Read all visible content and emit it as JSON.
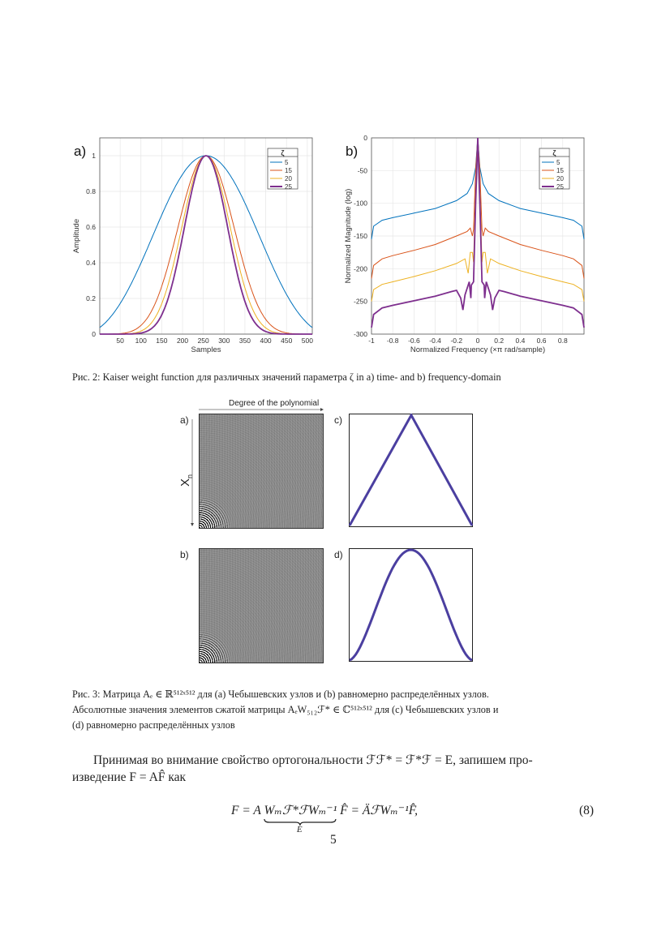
{
  "figure2": {
    "caption": "Рис. 2: Kaiser weight function для различных значений параметра ζ in a) time- and b) frequency-domain",
    "chart_data": [
      {
        "type": "line",
        "panel_label": "a)",
        "xlabel": "Samples",
        "ylabel": "Amplitude",
        "xlim": [
          1,
          512
        ],
        "ylim": [
          0,
          1.1
        ],
        "xticks": [
          50,
          100,
          150,
          200,
          250,
          300,
          350,
          400,
          450,
          500
        ],
        "yticks": [
          0,
          0.2,
          0.4,
          0.6,
          0.8,
          1
        ],
        "grid": true,
        "legend": {
          "title": "ζ",
          "position": "top-right"
        },
        "window_length": 512,
        "series": [
          {
            "name": "5",
            "beta": 5,
            "color": "#0072BD"
          },
          {
            "name": "15",
            "beta": 15,
            "color": "#D95319"
          },
          {
            "name": "20",
            "beta": 20,
            "color": "#EDB120"
          },
          {
            "name": "25",
            "beta": 25,
            "color": "#7E2F8E"
          }
        ]
      },
      {
        "type": "line",
        "panel_label": "b)",
        "xlabel": "Normalized Frequency  (×π rad/sample)",
        "ylabel": "Normalized Magnitude (log)",
        "xlim": [
          -1,
          1
        ],
        "ylim": [
          -300,
          0
        ],
        "xticks": [
          -1,
          -0.8,
          -0.6,
          -0.4,
          -0.2,
          0,
          0.2,
          0.4,
          0.6,
          0.8
        ],
        "yticks": [
          0,
          -50,
          -100,
          -150,
          -200,
          -250,
          -300
        ],
        "grid": true,
        "legend": {
          "title": "ζ",
          "position": "top-right"
        },
        "series": [
          {
            "name": "5",
            "color": "#0072BD",
            "x": [
              -1,
              -0.98,
              -0.9,
              -0.8,
              -0.6,
              -0.4,
              -0.2,
              -0.1,
              -0.05,
              -0.02,
              0,
              0.02,
              0.05,
              0.1,
              0.2,
              0.4,
              0.6,
              0.8,
              0.9,
              0.98,
              1
            ],
            "y": [
              -155,
              -135,
              -126,
              -122,
              -115,
              -108,
              -96,
              -85,
              -70,
              -45,
              0,
              -45,
              -70,
              -85,
              -96,
              -108,
              -115,
              -122,
              -126,
              -135,
              -155
            ]
          },
          {
            "name": "15",
            "color": "#D95319",
            "x": [
              -1,
              -0.98,
              -0.9,
              -0.8,
              -0.6,
              -0.4,
              -0.2,
              -0.1,
              -0.07,
              -0.05,
              -0.04,
              -0.02,
              0,
              0.02,
              0.04,
              0.05,
              0.07,
              0.1,
              0.2,
              0.4,
              0.6,
              0.8,
              0.9,
              0.98,
              1
            ],
            "y": [
              -215,
              -195,
              -185,
              -180,
              -172,
              -163,
              -150,
              -143,
              -138,
              -150,
              -140,
              -50,
              0,
              -50,
              -140,
              -150,
              -138,
              -143,
              -150,
              -163,
              -172,
              -180,
              -185,
              -195,
              -215
            ]
          },
          {
            "name": "20",
            "color": "#EDB120",
            "x": [
              -1,
              -0.98,
              -0.9,
              -0.8,
              -0.6,
              -0.4,
              -0.2,
              -0.12,
              -0.1,
              -0.09,
              -0.07,
              -0.05,
              -0.04,
              -0.02,
              0,
              0.02,
              0.04,
              0.05,
              0.07,
              0.09,
              0.1,
              0.12,
              0.2,
              0.4,
              0.6,
              0.8,
              0.9,
              0.98,
              1
            ],
            "y": [
              -250,
              -232,
              -224,
              -220,
              -212,
              -203,
              -192,
              -185,
              -200,
              -207,
              -175,
              -175,
              -190,
              -80,
              0,
              -80,
              -190,
              -175,
              -175,
              -207,
              -200,
              -185,
              -192,
              -203,
              -212,
              -220,
              -224,
              -232,
              -250
            ]
          },
          {
            "name": "25",
            "color": "#7E2F8E",
            "x": [
              -1,
              -0.98,
              -0.9,
              -0.8,
              -0.6,
              -0.4,
              -0.25,
              -0.2,
              -0.16,
              -0.14,
              -0.12,
              -0.08,
              -0.065,
              -0.06,
              -0.04,
              -0.02,
              0,
              0.02,
              0.04,
              0.06,
              0.065,
              0.08,
              0.12,
              0.14,
              0.16,
              0.2,
              0.25,
              0.4,
              0.6,
              0.8,
              0.9,
              0.98,
              1
            ],
            "y": [
              -290,
              -270,
              -260,
              -256,
              -249,
              -242,
              -235,
              -233,
              -245,
              -263,
              -240,
              -220,
              -245,
              -225,
              -220,
              -100,
              0,
              -100,
              -220,
              -225,
              -245,
              -220,
              -240,
              -263,
              -245,
              -233,
              -235,
              -242,
              -249,
              -256,
              -260,
              -270,
              -290
            ]
          }
        ]
      }
    ]
  },
  "figure3": {
    "top_axis_label": "Degree of the polynomial",
    "left_axis_label": "X",
    "left_axis_sub": "n",
    "panels": {
      "a": "a)",
      "b": "b)",
      "c": "c)",
      "d": "d)"
    },
    "curve_color": "#4B3FA0",
    "caption_lines": [
      "Рис. 3: Матрица Aₑ ∈ ℝ⁵¹²ˣ⁵¹² для (a) Чебышевских узлов и (b) равномерно распределённых узлов.",
      "Абсолютные значения элементов сжатой матрицы AₑW₅₁₂ℱ* ∈ ℂ⁵¹²ˣ⁵¹² для (c) Чебышевских узлов и",
      "(d) равномерно распределённых узлов"
    ]
  },
  "paragraph": {
    "line1": "Принимая во внимание свойство ортогональности ℱℱ* = ℱ*ℱ = E, запишем про-",
    "line2": "изведение F = AF̂ как"
  },
  "equation": {
    "lhs": "F = A",
    "braced": "Wₘℱ*ℱWₘ⁻¹",
    "under": "E",
    "rhs": "F̂ = ÄℱWₘ⁻¹F̂,",
    "number": "(8)"
  },
  "page_number": "5"
}
